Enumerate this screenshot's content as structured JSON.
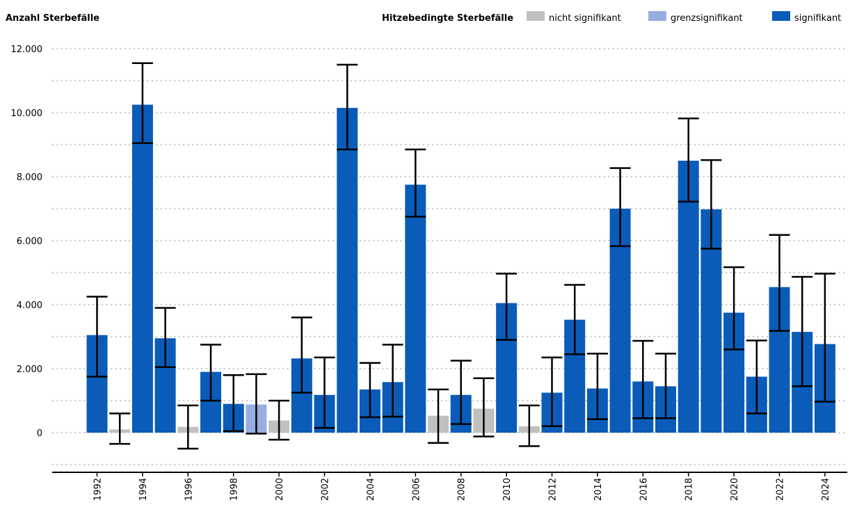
{
  "chart_data": {
    "type": "bar",
    "ylabel": "Anzahl Sterbefälle",
    "legend_title": "Hitzebedingte Sterbefälle",
    "legend": [
      {
        "key": "ns",
        "label": "nicht signifikant",
        "color": "#c0c0c0"
      },
      {
        "key": "gs",
        "label": "grenzsignifikant",
        "color": "#98aee0"
      },
      {
        "key": "s",
        "label": "signifikant",
        "color": "#0a5cb8"
      }
    ],
    "ylim": [
      -1000,
      12000
    ],
    "yticks": [
      {
        "value": 0,
        "label": "0"
      },
      {
        "value": 2000,
        "label": "2.000"
      },
      {
        "value": 4000,
        "label": "4.000"
      },
      {
        "value": 6000,
        "label": "6.000"
      },
      {
        "value": 8000,
        "label": "8.000"
      },
      {
        "value": 10000,
        "label": "10.000"
      },
      {
        "value": 12000,
        "label": "12.000"
      }
    ],
    "grid": true,
    "legend_position": "top-right",
    "xtick_labels": [
      "1992",
      "1994",
      "1996",
      "1998",
      "2000",
      "2002",
      "2004",
      "2006",
      "2008",
      "2010",
      "2012",
      "2014",
      "2016",
      "2018",
      "2020",
      "2022",
      "2024"
    ],
    "bars": [
      {
        "year": "1992",
        "value": 3050,
        "low": 1750,
        "high": 4250,
        "significance": "s"
      },
      {
        "year": "1993",
        "value": 100,
        "low": -350,
        "high": 600,
        "significance": "ns"
      },
      {
        "year": "1994",
        "value": 10250,
        "low": 9050,
        "high": 11550,
        "significance": "s"
      },
      {
        "year": "1995",
        "value": 2950,
        "low": 2050,
        "high": 3900,
        "significance": "s"
      },
      {
        "year": "1996",
        "value": 180,
        "low": -500,
        "high": 850,
        "significance": "ns"
      },
      {
        "year": "1997",
        "value": 1900,
        "low": 1000,
        "high": 2750,
        "significance": "s"
      },
      {
        "year": "1998",
        "value": 900,
        "low": 50,
        "high": 1800,
        "significance": "s"
      },
      {
        "year": "1999",
        "value": 880,
        "low": -30,
        "high": 1830,
        "significance": "gs"
      },
      {
        "year": "2000",
        "value": 380,
        "low": -220,
        "high": 1000,
        "significance": "ns"
      },
      {
        "year": "2001",
        "value": 2320,
        "low": 1250,
        "high": 3600,
        "significance": "s"
      },
      {
        "year": "2002",
        "value": 1180,
        "low": 150,
        "high": 2350,
        "significance": "s"
      },
      {
        "year": "2003",
        "value": 10150,
        "low": 8850,
        "high": 11500,
        "significance": "s"
      },
      {
        "year": "2004",
        "value": 1350,
        "low": 480,
        "high": 2180,
        "significance": "s"
      },
      {
        "year": "2005",
        "value": 1580,
        "low": 500,
        "high": 2750,
        "significance": "s"
      },
      {
        "year": "2006",
        "value": 7750,
        "low": 6750,
        "high": 8850,
        "significance": "s"
      },
      {
        "year": "2007",
        "value": 530,
        "low": -320,
        "high": 1350,
        "significance": "ns"
      },
      {
        "year": "2008",
        "value": 1180,
        "low": 270,
        "high": 2250,
        "significance": "s"
      },
      {
        "year": "2009",
        "value": 750,
        "low": -120,
        "high": 1700,
        "significance": "ns"
      },
      {
        "year": "2010",
        "value": 4050,
        "low": 2900,
        "high": 4970,
        "significance": "s"
      },
      {
        "year": "2011",
        "value": 200,
        "low": -420,
        "high": 850,
        "significance": "ns"
      },
      {
        "year": "2012",
        "value": 1250,
        "low": 200,
        "high": 2350,
        "significance": "s"
      },
      {
        "year": "2013",
        "value": 3530,
        "low": 2450,
        "high": 4620,
        "significance": "s"
      },
      {
        "year": "2014",
        "value": 1380,
        "low": 420,
        "high": 2470,
        "significance": "s"
      },
      {
        "year": "2015",
        "value": 7000,
        "low": 5830,
        "high": 8270,
        "significance": "s"
      },
      {
        "year": "2016",
        "value": 1600,
        "low": 450,
        "high": 2870,
        "significance": "s"
      },
      {
        "year": "2017",
        "value": 1450,
        "low": 450,
        "high": 2470,
        "significance": "s"
      },
      {
        "year": "2018",
        "value": 8500,
        "low": 7220,
        "high": 9820,
        "significance": "s"
      },
      {
        "year": "2019",
        "value": 6980,
        "low": 5750,
        "high": 8520,
        "significance": "s"
      },
      {
        "year": "2020",
        "value": 3750,
        "low": 2600,
        "high": 5170,
        "significance": "s"
      },
      {
        "year": "2021",
        "value": 1750,
        "low": 600,
        "high": 2880,
        "significance": "s"
      },
      {
        "year": "2022",
        "value": 4550,
        "low": 3180,
        "high": 6180,
        "significance": "s"
      },
      {
        "year": "2023",
        "value": 3150,
        "low": 1450,
        "high": 4870,
        "significance": "s"
      },
      {
        "year": "2024",
        "value": 2770,
        "low": 970,
        "high": 4970,
        "significance": "s"
      }
    ]
  }
}
